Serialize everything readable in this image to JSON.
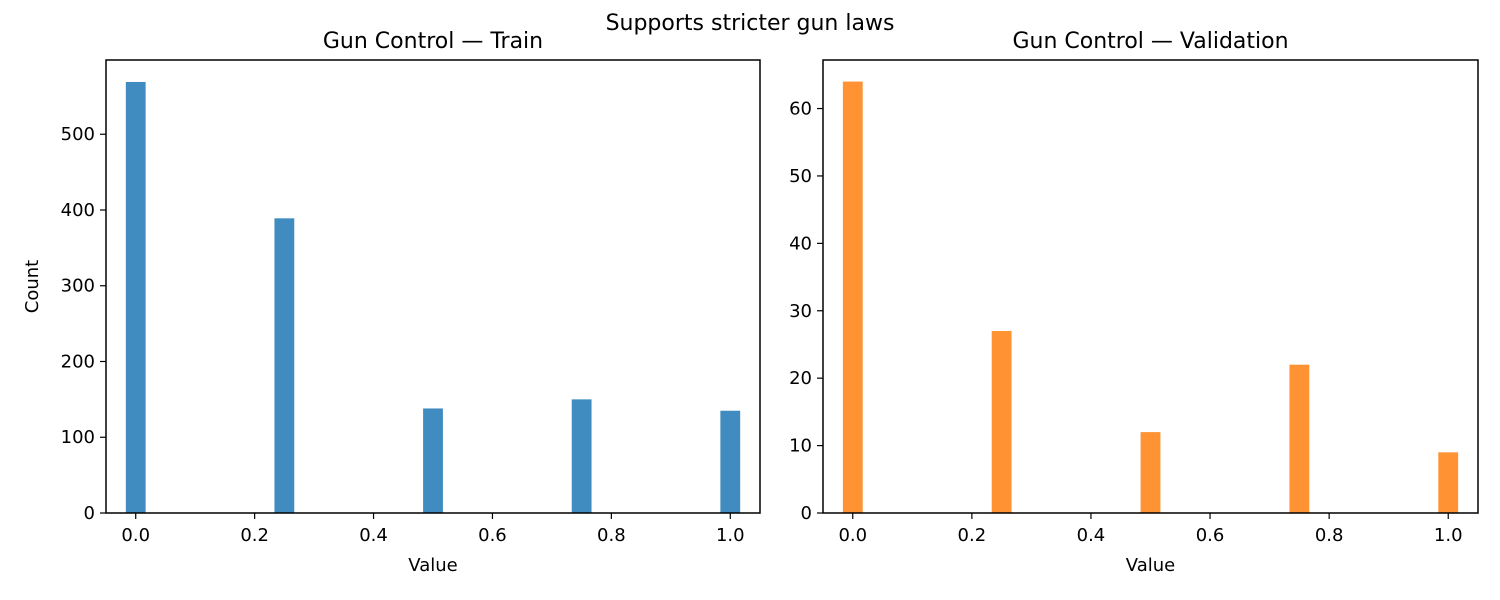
{
  "suptitle": "Supports stricter gun laws",
  "chart_data": [
    {
      "type": "bar",
      "title": "Gun Control — Train",
      "xlabel": "Value",
      "ylabel": "Count",
      "color": "#1f77b4",
      "x": [
        0.0,
        0.25,
        0.5,
        0.75,
        1.0
      ],
      "values": [
        569,
        389,
        138,
        150,
        135
      ],
      "bar_width": 0.0333,
      "xlim": [
        -0.05,
        1.05
      ],
      "ylim": [
        0,
        598
      ],
      "xticks": [
        0.0,
        0.2,
        0.4,
        0.6,
        0.8,
        1.0
      ],
      "xtick_labels": [
        "0.0",
        "0.2",
        "0.4",
        "0.6",
        "0.8",
        "1.0"
      ],
      "yticks": [
        0,
        100,
        200,
        300,
        400,
        500
      ],
      "ytick_labels": [
        "0",
        "100",
        "200",
        "300",
        "400",
        "500"
      ],
      "grid": false
    },
    {
      "type": "bar",
      "title": "Gun Control — Validation",
      "xlabel": "Value",
      "ylabel": "",
      "color": "#ff7f0e",
      "x": [
        0.0,
        0.25,
        0.5,
        0.75,
        1.0
      ],
      "values": [
        64,
        27,
        12,
        22,
        9
      ],
      "bar_width": 0.0333,
      "xlim": [
        -0.05,
        1.05
      ],
      "ylim": [
        0,
        67.2
      ],
      "xticks": [
        0.0,
        0.2,
        0.4,
        0.6,
        0.8,
        1.0
      ],
      "xtick_labels": [
        "0.0",
        "0.2",
        "0.4",
        "0.6",
        "0.8",
        "1.0"
      ],
      "yticks": [
        0,
        10,
        20,
        30,
        40,
        50,
        60
      ],
      "ytick_labels": [
        "0",
        "10",
        "20",
        "30",
        "40",
        "50",
        "60"
      ],
      "grid": false
    }
  ]
}
